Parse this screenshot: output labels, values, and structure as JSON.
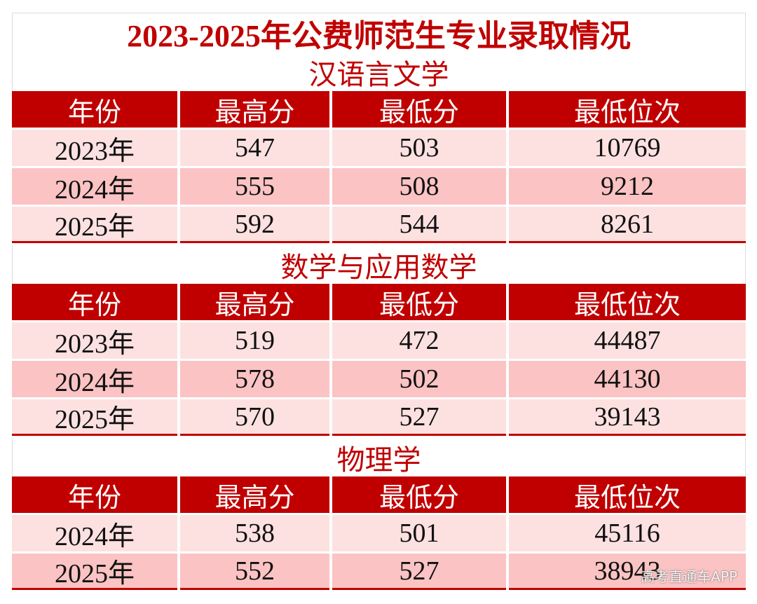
{
  "title": "2023-2025年公费师范生专业录取情况",
  "sections": [
    {
      "title": "汉语言文学",
      "header": [
        "年份",
        "最高分",
        "最低分",
        "最低位次"
      ],
      "rows": [
        [
          "2023年",
          547,
          503,
          10769
        ],
        [
          "2024年",
          555,
          508,
          9212
        ],
        [
          "2025年",
          592,
          544,
          8261
        ]
      ]
    },
    {
      "title": "数学与应用数学",
      "header": [
        "年份",
        "最高分",
        "最低分",
        "最低位次"
      ],
      "rows": [
        [
          "2023年",
          519,
          472,
          44487
        ],
        [
          "2024年",
          578,
          502,
          44130
        ],
        [
          "2025年",
          570,
          527,
          39143
        ]
      ]
    },
    {
      "title": "物理学",
      "header": [
        "年份",
        "最高分",
        "最低分",
        "最低位次"
      ],
      "rows": [
        [
          "2024年",
          538,
          501,
          45116
        ],
        [
          "2025年",
          552,
          527,
          38943
        ]
      ]
    }
  ],
  "watermark": "高考直通车APP"
}
